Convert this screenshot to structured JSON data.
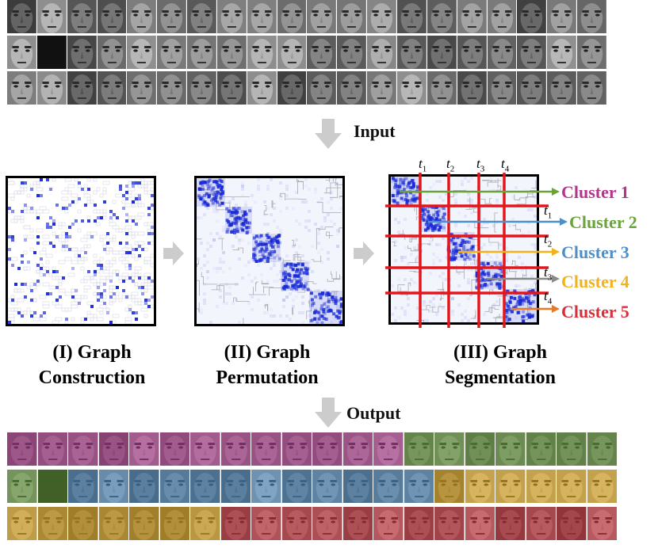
{
  "labels": {
    "input": "Input",
    "output": "Output"
  },
  "captions": {
    "construction_line1": "(I) Graph",
    "construction_line2": "Construction",
    "permutation_line1": "(II) Graph",
    "permutation_line2": "Permutation",
    "segmentation_line1": "(III) Graph",
    "segmentation_line2": "Segmentation"
  },
  "thresholds": [
    "t1",
    "t2",
    "t3",
    "t4"
  ],
  "clusters": [
    {
      "label": "Cluster 1",
      "color": "#b5348f"
    },
    {
      "label": "Cluster 2",
      "color": "#6aa33a"
    },
    {
      "label": "Cluster 3",
      "color": "#4f8fc9"
    },
    {
      "label": "Cluster 4",
      "color": "#f2b21a"
    },
    {
      "label": "Cluster 5",
      "color": "#d8303a"
    }
  ],
  "colors": {
    "matrix_blue": "#1a2bd6",
    "segment_line": "#e3161c",
    "arrow_gray": "#cccccc"
  }
}
